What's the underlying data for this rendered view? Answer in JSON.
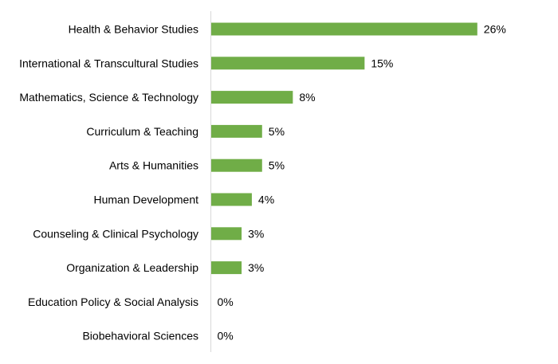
{
  "chart_data": {
    "type": "bar",
    "orientation": "horizontal",
    "categories": [
      "Health & Behavior Studies",
      "International & Transcultural Studies",
      "Mathematics, Science & Technology",
      "Curriculum & Teaching",
      "Arts & Humanities",
      "Human Development",
      "Counseling & Clinical Psychology",
      "Organization & Leadership",
      "Education Policy & Social Analysis",
      "Biobehavioral Sciences"
    ],
    "values": [
      26,
      15,
      8,
      5,
      5,
      4,
      3,
      3,
      0,
      0
    ],
    "value_labels": [
      "26%",
      "15%",
      "8%",
      "5%",
      "5%",
      "4%",
      "3%",
      "3%",
      "0%",
      "0%"
    ],
    "unit": "%",
    "xlim": [
      0,
      28
    ],
    "title": "",
    "xlabel": "",
    "ylabel": "",
    "grid": false,
    "legend": "none",
    "colors": {
      "bar": "#70AD47",
      "axis": "#D9D9D9",
      "text": "#000000"
    }
  }
}
